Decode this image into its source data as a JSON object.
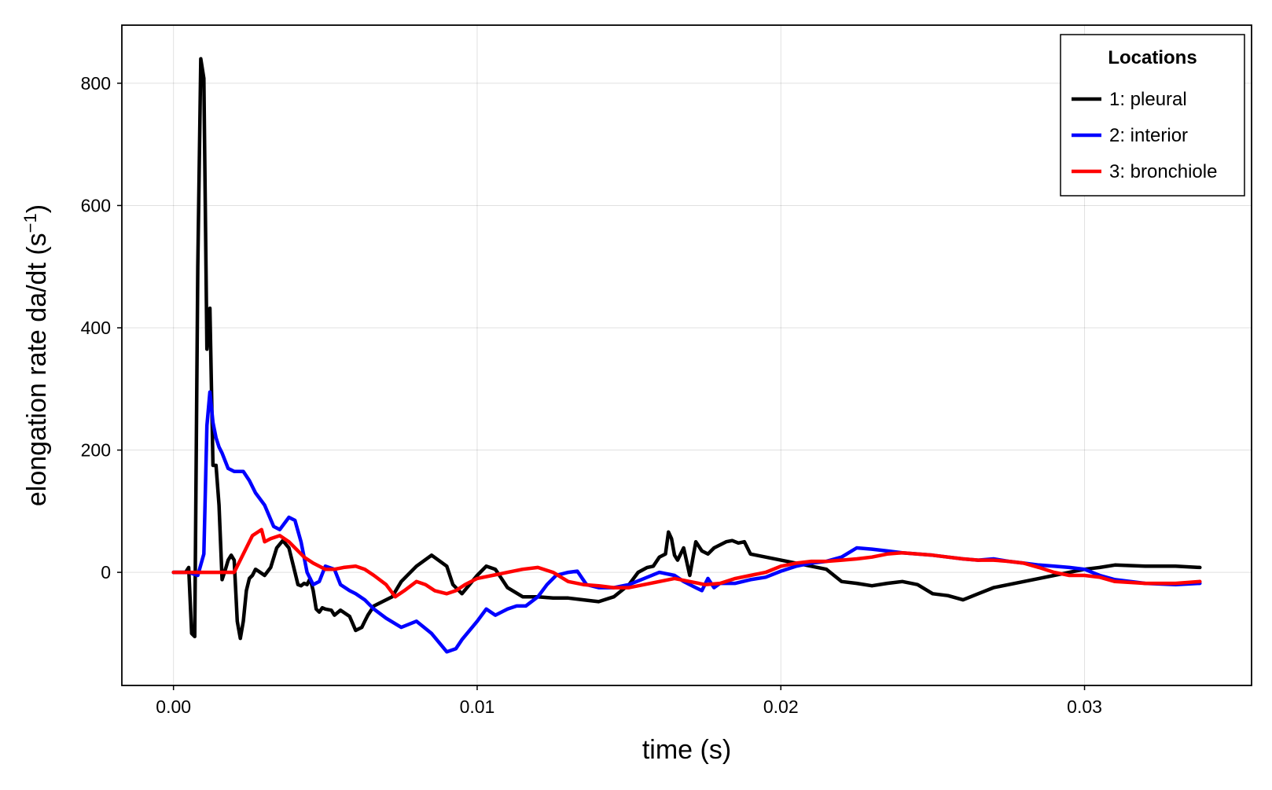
{
  "chart_data": {
    "type": "line",
    "title": "",
    "xlabel": "time (s)",
    "ylabel_main": "elongation rate da/dt (s",
    "ylabel_sup": "−1",
    "ylabel_close": ")",
    "xlim": [
      -0.0017,
      0.0355
    ],
    "ylim": [
      -185,
      895
    ],
    "x_ticks": [
      {
        "value": 0.0,
        "label": "0.00"
      },
      {
        "value": 0.01,
        "label": "0.01"
      },
      {
        "value": 0.02,
        "label": "0.02"
      },
      {
        "value": 0.03,
        "label": "0.03"
      }
    ],
    "y_ticks": [
      {
        "value": 0,
        "label": "0"
      },
      {
        "value": 200,
        "label": "200"
      },
      {
        "value": 400,
        "label": "400"
      },
      {
        "value": 600,
        "label": "600"
      },
      {
        "value": 800,
        "label": "800"
      }
    ],
    "grid": true,
    "legend": {
      "title": "Locations",
      "position": "top-right"
    },
    "series": [
      {
        "name": "1: pleural",
        "color": "#000000",
        "x": [
          0.0,
          0.0004,
          0.0005,
          0.0006,
          0.0007,
          0.0008,
          0.0009,
          0.001,
          0.0011,
          0.0012,
          0.0013,
          0.0014,
          0.0015,
          0.0016,
          0.0017,
          0.0018,
          0.0019,
          0.002,
          0.0021,
          0.0022,
          0.0023,
          0.0024,
          0.0025,
          0.0026,
          0.0027,
          0.0028,
          0.003,
          0.0032,
          0.0034,
          0.0036,
          0.0038,
          0.004,
          0.0041,
          0.0042,
          0.0043,
          0.0044,
          0.0045,
          0.0046,
          0.0047,
          0.0048,
          0.0049,
          0.005,
          0.0052,
          0.0053,
          0.0055,
          0.0058,
          0.006,
          0.0062,
          0.0063,
          0.0064,
          0.0066,
          0.0068,
          0.0072,
          0.0075,
          0.008,
          0.0085,
          0.009,
          0.0092,
          0.0095,
          0.01,
          0.0103,
          0.0106,
          0.011,
          0.0115,
          0.012,
          0.0125,
          0.013,
          0.0135,
          0.014,
          0.0145,
          0.015,
          0.0153,
          0.0156,
          0.0158,
          0.016,
          0.0162,
          0.0163,
          0.0164,
          0.0165,
          0.0166,
          0.0168,
          0.017,
          0.0172,
          0.0174,
          0.0176,
          0.0178,
          0.018,
          0.0182,
          0.0184,
          0.0186,
          0.0188,
          0.019,
          0.0195,
          0.02,
          0.0205,
          0.021,
          0.0215,
          0.022,
          0.0225,
          0.023,
          0.0235,
          0.024,
          0.0245,
          0.025,
          0.0255,
          0.026,
          0.0265,
          0.027,
          0.0275,
          0.028,
          0.0285,
          0.029,
          0.0295,
          0.03,
          0.0305,
          0.031,
          0.032,
          0.033,
          0.0338
        ],
        "y": [
          0,
          0,
          8,
          -100,
          -105,
          500,
          840,
          808,
          365,
          432,
          175,
          175,
          110,
          -12,
          3,
          20,
          28,
          20,
          -80,
          -108,
          -80,
          -30,
          -10,
          -5,
          5,
          2,
          -5,
          8,
          40,
          52,
          40,
          0,
          -20,
          -22,
          -18,
          -20,
          -10,
          -30,
          -60,
          -65,
          -58,
          -60,
          -62,
          -70,
          -62,
          -72,
          -95,
          -90,
          -80,
          -70,
          -55,
          -50,
          -40,
          -15,
          10,
          28,
          10,
          -20,
          -35,
          -5,
          10,
          5,
          -25,
          -40,
          -40,
          -42,
          -42,
          -45,
          -48,
          -40,
          -20,
          0,
          8,
          10,
          25,
          30,
          66,
          55,
          28,
          20,
          40,
          -5,
          50,
          35,
          30,
          40,
          45,
          50,
          52,
          48,
          50,
          30,
          25,
          20,
          15,
          10,
          5,
          -15,
          -18,
          -22,
          -18,
          -15,
          -20,
          -35,
          -38,
          -45,
          -35,
          -25,
          -20,
          -15,
          -10,
          -5,
          0,
          5,
          8,
          12,
          10,
          10,
          8
        ]
      },
      {
        "name": "2: interior",
        "color": "#0000ff",
        "x": [
          0.0,
          0.0005,
          0.0008,
          0.001,
          0.0011,
          0.0012,
          0.0013,
          0.0014,
          0.0015,
          0.0016,
          0.0018,
          0.002,
          0.0023,
          0.0025,
          0.0027,
          0.003,
          0.0033,
          0.0035,
          0.0038,
          0.004,
          0.0042,
          0.0044,
          0.0046,
          0.0048,
          0.005,
          0.0053,
          0.0055,
          0.0058,
          0.006,
          0.0063,
          0.0066,
          0.007,
          0.0075,
          0.008,
          0.0085,
          0.009,
          0.0093,
          0.0095,
          0.01,
          0.0103,
          0.0106,
          0.011,
          0.0113,
          0.0116,
          0.012,
          0.0123,
          0.0126,
          0.013,
          0.0133,
          0.0136,
          0.014,
          0.0145,
          0.015,
          0.0155,
          0.016,
          0.0165,
          0.0168,
          0.017,
          0.0172,
          0.0174,
          0.0176,
          0.0178,
          0.018,
          0.0185,
          0.019,
          0.0195,
          0.02,
          0.0205,
          0.021,
          0.0215,
          0.022,
          0.0225,
          0.023,
          0.0235,
          0.024,
          0.0245,
          0.025,
          0.0255,
          0.026,
          0.0265,
          0.027,
          0.0275,
          0.028,
          0.0285,
          0.029,
          0.0295,
          0.03,
          0.0305,
          0.031,
          0.032,
          0.033,
          0.0338
        ],
        "y": [
          0,
          0,
          -5,
          30,
          240,
          295,
          245,
          220,
          205,
          195,
          170,
          165,
          165,
          150,
          130,
          110,
          75,
          70,
          90,
          85,
          50,
          0,
          -20,
          -15,
          10,
          5,
          -20,
          -30,
          -35,
          -45,
          -60,
          -75,
          -90,
          -80,
          -100,
          -130,
          -125,
          -110,
          -80,
          -60,
          -70,
          -60,
          -55,
          -55,
          -40,
          -20,
          -5,
          0,
          2,
          -20,
          -25,
          -25,
          -20,
          -10,
          0,
          -5,
          -15,
          -20,
          -25,
          -30,
          -10,
          -25,
          -18,
          -18,
          -12,
          -8,
          2,
          10,
          15,
          18,
          25,
          40,
          38,
          35,
          32,
          30,
          28,
          25,
          22,
          20,
          22,
          18,
          15,
          12,
          10,
          8,
          5,
          -5,
          -12,
          -18,
          -20,
          -18
        ]
      },
      {
        "name": "3: bronchiole",
        "color": "#ff0000",
        "x": [
          0.0,
          0.0005,
          0.001,
          0.0015,
          0.002,
          0.0023,
          0.0026,
          0.0029,
          0.003,
          0.0032,
          0.0035,
          0.0038,
          0.004,
          0.0043,
          0.0046,
          0.005,
          0.0053,
          0.0056,
          0.006,
          0.0063,
          0.0066,
          0.007,
          0.0073,
          0.0076,
          0.008,
          0.0083,
          0.0086,
          0.009,
          0.0093,
          0.0096,
          0.01,
          0.0105,
          0.011,
          0.0115,
          0.012,
          0.0125,
          0.013,
          0.0135,
          0.014,
          0.0145,
          0.015,
          0.0155,
          0.016,
          0.0165,
          0.017,
          0.0175,
          0.018,
          0.0185,
          0.019,
          0.0195,
          0.02,
          0.0205,
          0.021,
          0.0215,
          0.022,
          0.0225,
          0.023,
          0.0235,
          0.024,
          0.0245,
          0.025,
          0.0255,
          0.026,
          0.0265,
          0.027,
          0.0275,
          0.028,
          0.0285,
          0.029,
          0.0295,
          0.03,
          0.0305,
          0.031,
          0.032,
          0.033,
          0.0338
        ],
        "y": [
          0,
          0,
          0,
          0,
          0,
          30,
          60,
          70,
          50,
          55,
          60,
          50,
          40,
          25,
          15,
          5,
          5,
          8,
          10,
          5,
          -5,
          -20,
          -40,
          -30,
          -15,
          -20,
          -30,
          -35,
          -30,
          -20,
          -10,
          -5,
          0,
          5,
          8,
          0,
          -15,
          -20,
          -22,
          -25,
          -25,
          -20,
          -15,
          -10,
          -15,
          -20,
          -18,
          -10,
          -5,
          0,
          10,
          15,
          18,
          18,
          20,
          22,
          25,
          30,
          32,
          30,
          28,
          25,
          22,
          20,
          20,
          18,
          15,
          8,
          0,
          -5,
          -5,
          -8,
          -15,
          -18,
          -18,
          -15
        ]
      }
    ]
  }
}
